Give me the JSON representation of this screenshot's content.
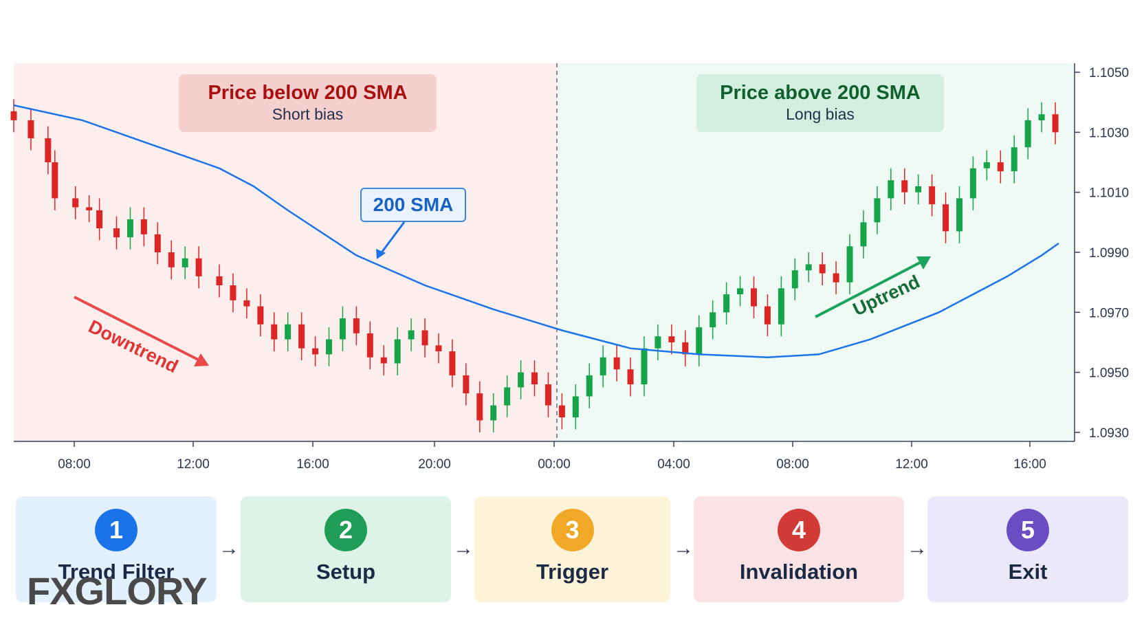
{
  "chart_data": {
    "type": "candlestick",
    "x_ticks": [
      "08:00",
      "12:00",
      "16:00",
      "20:00",
      "00:00",
      "04:00",
      "08:00",
      "12:00",
      "16:00"
    ],
    "y_ticks": [
      "1.1050",
      "1.1030",
      "1.1010",
      "1.0990",
      "1.0970",
      "1.0950",
      "1.0930"
    ],
    "ylim": [
      1.0927,
      1.1053
    ],
    "sma_label": "200 SMA",
    "sma": [
      [
        0,
        1.1039
      ],
      [
        20,
        1.1034
      ],
      [
        40,
        1.1026
      ],
      [
        55,
        1.102
      ],
      [
        60,
        1.1018
      ],
      [
        70,
        1.1012
      ],
      [
        80,
        1.1004
      ],
      [
        100,
        1.0989
      ],
      [
        120,
        1.0979
      ],
      [
        140,
        1.0971
      ],
      [
        160,
        1.0964
      ],
      [
        180,
        1.0958
      ],
      [
        200,
        1.0956
      ],
      [
        220,
        1.0955
      ],
      [
        235,
        1.0956
      ],
      [
        250,
        1.0961
      ],
      [
        270,
        1.097
      ],
      [
        290,
        1.0982
      ],
      [
        300,
        1.0989
      ],
      [
        305,
        1.0993
      ]
    ],
    "candles_points": [
      [
        0,
        1.1034
      ],
      [
        5,
        1.1028
      ],
      [
        10,
        1.102
      ],
      [
        12,
        1.1008
      ],
      [
        18,
        1.1005
      ],
      [
        22,
        1.1004
      ],
      [
        25,
        1.0998
      ],
      [
        30,
        1.0995
      ],
      [
        34,
        1.1001
      ],
      [
        38,
        1.0996
      ],
      [
        42,
        1.099
      ],
      [
        46,
        1.0985
      ],
      [
        50,
        1.0988
      ],
      [
        54,
        1.0982
      ],
      [
        60,
        1.0979
      ],
      [
        64,
        1.0974
      ],
      [
        68,
        1.0972
      ],
      [
        72,
        1.0966
      ],
      [
        76,
        1.0961
      ],
      [
        80,
        1.0966
      ],
      [
        84,
        1.0958
      ],
      [
        88,
        1.0956
      ],
      [
        92,
        1.0961
      ],
      [
        96,
        1.0968
      ],
      [
        100,
        1.0963
      ],
      [
        104,
        1.0955
      ],
      [
        108,
        1.0953
      ],
      [
        112,
        1.0961
      ],
      [
        116,
        1.0964
      ],
      [
        120,
        1.0959
      ],
      [
        124,
        1.0957
      ],
      [
        128,
        1.0949
      ],
      [
        132,
        1.0943
      ],
      [
        136,
        1.0934
      ],
      [
        140,
        1.0939
      ],
      [
        144,
        1.0945
      ],
      [
        148,
        1.095
      ],
      [
        152,
        1.0946
      ],
      [
        156,
        1.0939
      ],
      [
        160,
        1.0935
      ],
      [
        164,
        1.0942
      ],
      [
        168,
        1.0949
      ],
      [
        172,
        1.0955
      ],
      [
        176,
        1.0951
      ],
      [
        180,
        1.0946
      ],
      [
        184,
        1.0958
      ],
      [
        188,
        1.0962
      ],
      [
        192,
        1.096
      ],
      [
        196,
        1.0956
      ],
      [
        200,
        1.0965
      ],
      [
        204,
        1.097
      ],
      [
        208,
        1.0976
      ],
      [
        212,
        1.0978
      ],
      [
        216,
        1.0972
      ],
      [
        220,
        1.0966
      ],
      [
        224,
        1.0978
      ],
      [
        228,
        1.0984
      ],
      [
        232,
        1.0986
      ],
      [
        236,
        1.0983
      ],
      [
        240,
        1.098
      ],
      [
        244,
        1.0992
      ],
      [
        248,
        1.1
      ],
      [
        252,
        1.1008
      ],
      [
        256,
        1.1014
      ],
      [
        260,
        1.101
      ],
      [
        264,
        1.1012
      ],
      [
        268,
        1.1006
      ],
      [
        272,
        1.0997
      ],
      [
        276,
        1.1008
      ],
      [
        280,
        1.1018
      ],
      [
        284,
        1.102
      ],
      [
        288,
        1.1017
      ],
      [
        292,
        1.1025
      ],
      [
        296,
        1.1034
      ],
      [
        300,
        1.1036
      ],
      [
        304,
        1.103
      ]
    ],
    "annotations": {
      "left_title": "Price below 200 SMA",
      "left_subtitle": "Short bias",
      "right_title": "Price above 200 SMA",
      "right_subtitle": "Long bias",
      "downtrend": "Downtrend",
      "uptrend": "Uptrend"
    },
    "colors": {
      "bull": "#16a34a",
      "bear": "#dc2626",
      "sma": "#1a73e8",
      "left_bg": "#fdeeee",
      "right_bg": "#eefaf3"
    }
  },
  "steps": [
    {
      "num": "1",
      "label": "Trend Filter",
      "color": "#1a73e8",
      "bg": "#e3f0fd"
    },
    {
      "num": "2",
      "label": "Setup",
      "color": "#1f9d57",
      "bg": "#def3e7"
    },
    {
      "num": "3",
      "label": "Trigger",
      "color": "#f2a827",
      "bg": "#fdf3d8"
    },
    {
      "num": "4",
      "label": "Invalidation",
      "color": "#d13a35",
      "bg": "#fbe3e5"
    },
    {
      "num": "5",
      "label": "Exit",
      "color": "#6c4cc4",
      "bg": "#ece8fb"
    }
  ],
  "arrows": [
    "→",
    "→",
    "→",
    "→"
  ],
  "logo": "FXGLORY"
}
